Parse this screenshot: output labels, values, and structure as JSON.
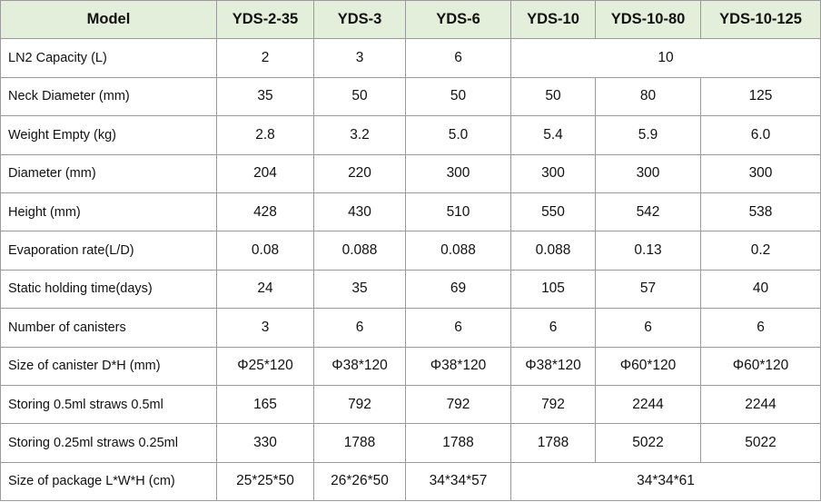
{
  "table": {
    "header": [
      "Model",
      "YDS-2-35",
      "YDS-3",
      "YDS-6",
      "YDS-10",
      "YDS-10-80",
      "YDS-10-125"
    ],
    "rows": [
      [
        "LN2 Capacity (L)",
        "2",
        "3",
        "6",
        "10"
      ],
      [
        "Neck Diameter (mm)",
        "35",
        "50",
        "50",
        "50",
        "80",
        "125"
      ],
      [
        "Weight Empty (kg)",
        "2.8",
        "3.2",
        "5.0",
        "5.4",
        "5.9",
        "6.0"
      ],
      [
        "Diameter    (mm)",
        "204",
        "220",
        "300",
        "300",
        "300",
        "300"
      ],
      [
        "Height (mm)",
        "428",
        "430",
        "510",
        "550",
        "542",
        "538"
      ],
      [
        "Evaporation rate(L/D)",
        "0.08",
        "0.088",
        "0.088",
        "0.088",
        "0.13",
        "0.2"
      ],
      [
        "Static holding time(days)",
        "24",
        "35",
        "69",
        "105",
        "57",
        "40"
      ],
      [
        "Number of canisters",
        "3",
        "6",
        "6",
        "6",
        "6",
        "6"
      ],
      [
        "Size of canister D*H (mm)",
        "Φ25*120",
        "Φ38*120",
        "Φ38*120",
        "Φ38*120",
        "Φ60*120",
        "Φ60*120"
      ],
      [
        "Storing 0.5ml straws 0.5ml",
        "165",
        "792",
        "792",
        "792",
        "2244",
        "2244"
      ],
      [
        "Storing 0.25ml straws 0.25ml",
        "330",
        "1788",
        "1788",
        "1788",
        "5022",
        "5022"
      ],
      [
        "Size of package L*W*H (cm)",
        "25*25*50",
        "26*26*50",
        "34*34*57",
        "34*34*61"
      ]
    ]
  }
}
